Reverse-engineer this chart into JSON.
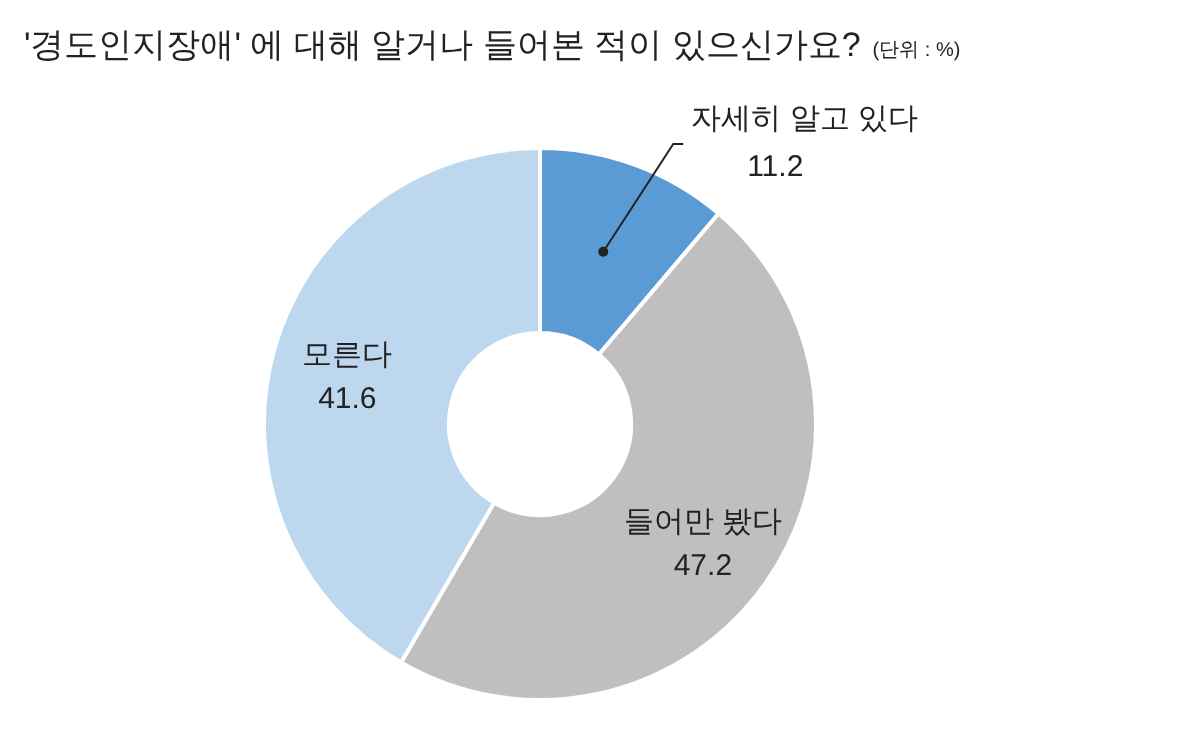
{
  "chart_data": {
    "type": "donut",
    "title": "'경도인지장애' 에 대해 알거나 들어본 적이 있으신가요?",
    "subtitle": "(단위 : %)",
    "categories": [
      "자세히 알고 있다",
      "들어만 봤다",
      "모른다"
    ],
    "values": [
      11.2,
      47.2,
      41.6
    ],
    "colors": [
      "#5b9bd5",
      "#bfbfbf",
      "#bdd7ee"
    ],
    "data_labels": true
  }
}
